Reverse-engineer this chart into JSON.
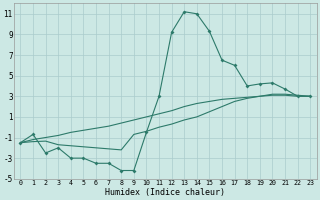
{
  "xlabel": "Humidex (Indice chaleur)",
  "x": [
    0,
    1,
    2,
    3,
    4,
    5,
    6,
    7,
    8,
    9,
    10,
    11,
    12,
    13,
    14,
    15,
    16,
    17,
    18,
    19,
    20,
    21,
    22,
    23
  ],
  "y_main": [
    -1.5,
    -0.7,
    -2.5,
    -2.0,
    -3.0,
    -3.0,
    -3.5,
    -3.5,
    -4.2,
    -4.2,
    -0.5,
    3.0,
    9.2,
    11.2,
    11.0,
    9.3,
    6.5,
    6.0,
    4.0,
    4.2,
    4.3,
    3.7,
    3.0,
    3.0
  ],
  "y_line1": [
    -1.5,
    -1.4,
    -1.35,
    -1.7,
    -1.8,
    -1.9,
    -2.0,
    -2.1,
    -2.2,
    -0.7,
    -0.4,
    -0.0,
    0.3,
    0.7,
    1.0,
    1.5,
    2.0,
    2.5,
    2.8,
    3.0,
    3.2,
    3.2,
    3.1,
    3.0
  ],
  "y_line2": [
    -1.5,
    -1.2,
    -1.0,
    -0.8,
    -0.5,
    -0.3,
    -0.1,
    0.1,
    0.4,
    0.7,
    1.0,
    1.3,
    1.6,
    2.0,
    2.3,
    2.5,
    2.7,
    2.8,
    2.9,
    3.0,
    3.1,
    3.1,
    3.0,
    3.0
  ],
  "color": "#2d7a6a",
  "bg_color": "#cce8e4",
  "grid_color": "#aacccc",
  "ylim": [
    -5,
    12
  ],
  "yticks": [
    -5,
    -3,
    -1,
    1,
    3,
    5,
    7,
    9,
    11
  ],
  "xlim": [
    -0.5,
    23.5
  ],
  "xticks": [
    0,
    1,
    2,
    3,
    4,
    5,
    6,
    7,
    8,
    9,
    10,
    11,
    12,
    13,
    14,
    15,
    16,
    17,
    18,
    19,
    20,
    21,
    22,
    23
  ]
}
